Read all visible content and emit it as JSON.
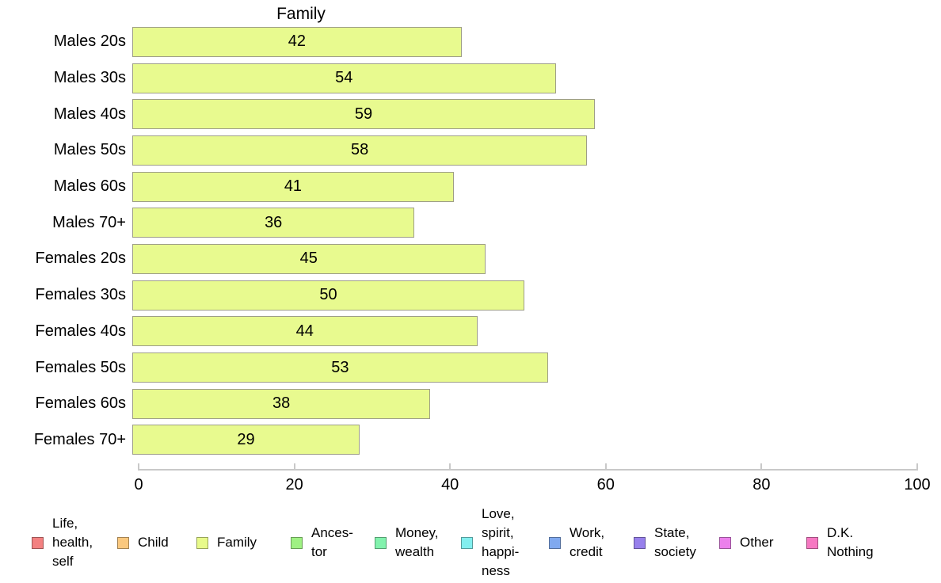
{
  "chart_data": {
    "type": "bar",
    "orientation": "horizontal",
    "title": "Family",
    "categories": [
      "Males 20s",
      "Males 30s",
      "Males 40s",
      "Males 50s",
      "Males 60s",
      "Males 70+",
      "Females 20s",
      "Females 30s",
      "Females 40s",
      "Females 50s",
      "Females 60s",
      "Females 70+"
    ],
    "values": [
      42,
      54,
      59,
      58,
      41,
      36,
      45,
      50,
      44,
      53,
      38,
      29
    ],
    "value_labels_shown": true,
    "xlabel": "",
    "ylabel": "",
    "xlim": [
      0,
      100
    ],
    "x_tick_labels": [
      "0",
      "20",
      "40",
      "60",
      "80",
      "100"
    ],
    "grid": false,
    "bar_color": "#E8FA8F",
    "bar_border_color": "#9E9E88",
    "axis_color": "#C9C9C9",
    "legend_position": "bottom"
  },
  "legend": {
    "items": [
      {
        "label": "Life,\nhealth,\nself",
        "color": "#F38181"
      },
      {
        "label": "Child",
        "color": "#FAC87E"
      },
      {
        "label": "Family",
        "color": "#E8FA8A"
      },
      {
        "label": "Ances-\ntor",
        "color": "#9FF183"
      },
      {
        "label": "Money,\nwealth",
        "color": "#82F2AD"
      },
      {
        "label": "Love,\nspirit,\nhappi-\nness",
        "color": "#82EFEF"
      },
      {
        "label": "Work,\ncredit",
        "color": "#80A9EF"
      },
      {
        "label": "State,\nsociety",
        "color": "#9780EC"
      },
      {
        "label": "Other",
        "color": "#EC80EC"
      },
      {
        "label": "D.K.\nNothing",
        "color": "#F678C2"
      }
    ]
  }
}
